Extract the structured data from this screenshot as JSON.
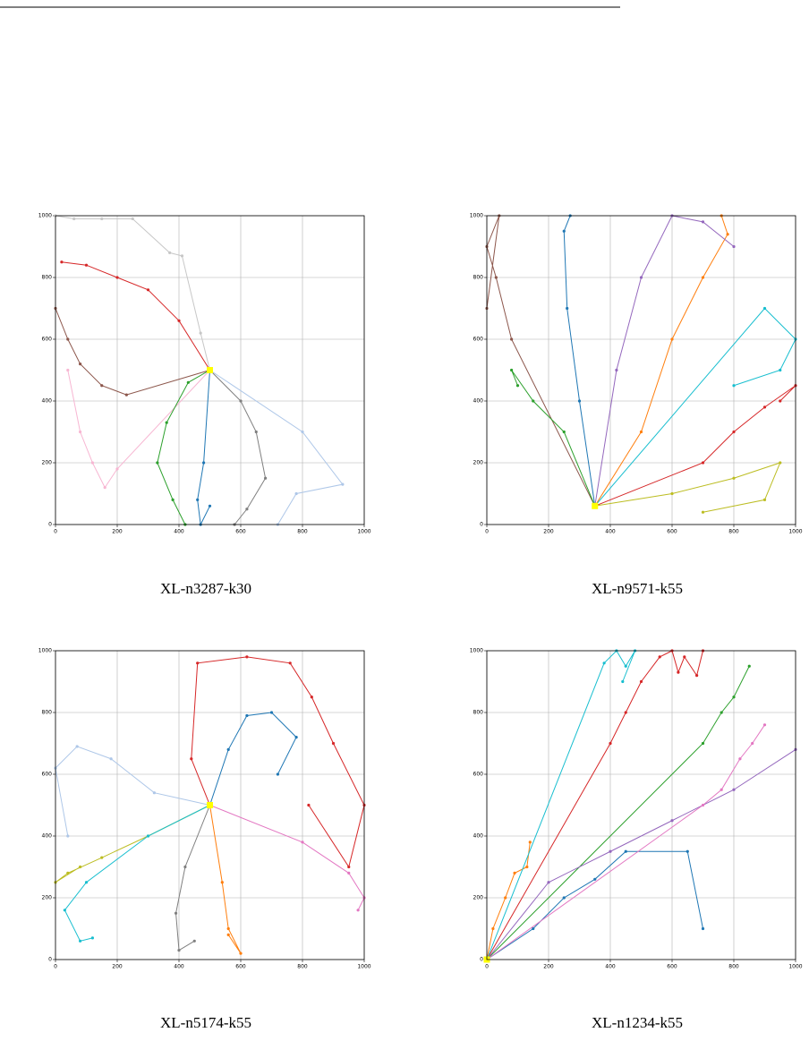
{
  "chart_data": [
    {
      "type": "line",
      "title": "XL-n3287-k30",
      "xlim": [
        0,
        1000
      ],
      "ylim": [
        0,
        1000
      ],
      "xticks": [
        0,
        200,
        400,
        600,
        800,
        1000
      ],
      "yticks": [
        0,
        200,
        400,
        600,
        800,
        1000
      ],
      "grid": true,
      "depot": {
        "x": 500,
        "y": 500,
        "color": "#ffff00"
      },
      "series": [
        {
          "color": "#c7c7c7",
          "x": [
            500,
            470,
            410,
            370,
            250,
            150,
            60,
            0
          ],
          "y": [
            500,
            620,
            870,
            880,
            990,
            990,
            990,
            1000
          ]
        },
        {
          "color": "#d62728",
          "x": [
            500,
            400,
            300,
            200,
            100,
            20
          ],
          "y": [
            500,
            660,
            760,
            800,
            840,
            850
          ]
        },
        {
          "color": "#f7b6d2",
          "x": [
            500,
            200,
            160,
            120,
            80,
            40
          ],
          "y": [
            500,
            180,
            120,
            200,
            300,
            500
          ]
        },
        {
          "color": "#1f77b4",
          "x": [
            500,
            480,
            460,
            470,
            500
          ],
          "y": [
            500,
            200,
            80,
            0,
            60
          ]
        },
        {
          "color": "#7f7f7f",
          "x": [
            500,
            600,
            650,
            680,
            620,
            580
          ],
          "y": [
            500,
            400,
            300,
            150,
            50,
            0
          ]
        },
        {
          "color": "#aec7e8",
          "x": [
            500,
            800,
            930,
            780,
            720
          ],
          "y": [
            500,
            300,
            130,
            100,
            0
          ]
        },
        {
          "color": "#2ca02c",
          "x": [
            500,
            430,
            360,
            330,
            380,
            420
          ],
          "y": [
            500,
            460,
            330,
            200,
            80,
            0
          ]
        },
        {
          "color": "#8c564b",
          "x": [
            500,
            230,
            150,
            80,
            40,
            0
          ],
          "y": [
            500,
            420,
            450,
            520,
            600,
            700
          ]
        }
      ]
    },
    {
      "type": "line",
      "title": "XL-n9571-k55",
      "xlim": [
        0,
        1000
      ],
      "ylim": [
        0,
        1000
      ],
      "xticks": [
        0,
        200,
        400,
        600,
        800,
        1000
      ],
      "yticks": [
        0,
        200,
        400,
        600,
        800,
        1000
      ],
      "grid": true,
      "depot": {
        "x": 350,
        "y": 60,
        "color": "#ffff00"
      },
      "series": [
        {
          "color": "#1f77b4",
          "x": [
            350,
            300,
            260,
            250,
            270
          ],
          "y": [
            60,
            400,
            700,
            950,
            1000
          ]
        },
        {
          "color": "#ff7f0e",
          "x": [
            350,
            500,
            600,
            700,
            780,
            760
          ],
          "y": [
            60,
            300,
            600,
            800,
            940,
            1000
          ]
        },
        {
          "color": "#d62728",
          "x": [
            350,
            700,
            800,
            900,
            1000,
            950
          ],
          "y": [
            60,
            200,
            300,
            380,
            450,
            400
          ]
        },
        {
          "color": "#bcbd22",
          "x": [
            350,
            600,
            800,
            950,
            900,
            700
          ],
          "y": [
            60,
            100,
            150,
            200,
            80,
            40
          ]
        },
        {
          "color": "#8c564b",
          "x": [
            350,
            80,
            30,
            0,
            40,
            0
          ],
          "y": [
            60,
            600,
            800,
            900,
            1000,
            700
          ]
        },
        {
          "color": "#9467bd",
          "x": [
            350,
            420,
            500,
            600,
            700,
            800
          ],
          "y": [
            60,
            500,
            800,
            1000,
            980,
            900
          ]
        },
        {
          "color": "#2ca02c",
          "x": [
            350,
            250,
            150,
            80,
            100
          ],
          "y": [
            60,
            300,
            400,
            500,
            450
          ]
        },
        {
          "color": "#17becf",
          "x": [
            350,
            900,
            1000,
            950,
            800
          ],
          "y": [
            60,
            700,
            600,
            500,
            450
          ]
        }
      ]
    },
    {
      "type": "line",
      "title": "XL-n5174-k55",
      "xlim": [
        0,
        1000
      ],
      "ylim": [
        0,
        1000
      ],
      "xticks": [
        0,
        200,
        400,
        600,
        800,
        1000
      ],
      "yticks": [
        0,
        200,
        400,
        600,
        800,
        1000
      ],
      "grid": true,
      "depot": {
        "x": 500,
        "y": 500,
        "color": "#ffff00"
      },
      "series": [
        {
          "color": "#d62728",
          "x": [
            500,
            440,
            460,
            620,
            760,
            830,
            900,
            1000,
            950,
            820
          ],
          "y": [
            500,
            650,
            960,
            980,
            960,
            850,
            700,
            500,
            300,
            500
          ]
        },
        {
          "color": "#aec7e8",
          "x": [
            500,
            320,
            180,
            70,
            0,
            40
          ],
          "y": [
            500,
            540,
            650,
            690,
            620,
            400
          ]
        },
        {
          "color": "#bcbd22",
          "x": [
            500,
            300,
            150,
            40,
            0,
            80
          ],
          "y": [
            500,
            400,
            330,
            280,
            250,
            300
          ]
        },
        {
          "color": "#1f77b4",
          "x": [
            500,
            560,
            620,
            700,
            780,
            720
          ],
          "y": [
            500,
            680,
            790,
            800,
            720,
            600
          ]
        },
        {
          "color": "#ff7f0e",
          "x": [
            500,
            540,
            560,
            600,
            560
          ],
          "y": [
            500,
            250,
            100,
            20,
            80
          ]
        },
        {
          "color": "#7f7f7f",
          "x": [
            500,
            420,
            390,
            400,
            450
          ],
          "y": [
            500,
            300,
            150,
            30,
            60
          ]
        },
        {
          "color": "#e377c2",
          "x": [
            500,
            800,
            950,
            1000,
            980
          ],
          "y": [
            500,
            380,
            280,
            200,
            160
          ]
        },
        {
          "color": "#17becf",
          "x": [
            500,
            300,
            100,
            30,
            80,
            120
          ],
          "y": [
            500,
            400,
            250,
            160,
            60,
            70
          ]
        }
      ]
    },
    {
      "type": "line",
      "title": "XL-n1234-k55",
      "xlim": [
        0,
        1000
      ],
      "ylim": [
        0,
        1000
      ],
      "xticks": [
        0,
        200,
        400,
        600,
        800,
        1000
      ],
      "yticks": [
        0,
        200,
        400,
        600,
        800,
        1000
      ],
      "grid": true,
      "depot": {
        "x": 0,
        "y": 0,
        "color": "#ffff00"
      },
      "series": [
        {
          "color": "#d62728",
          "x": [
            0,
            400,
            450,
            500,
            560,
            600,
            620,
            640,
            680,
            700
          ],
          "y": [
            0,
            700,
            800,
            900,
            980,
            1000,
            930,
            980,
            920,
            1000
          ]
        },
        {
          "color": "#2ca02c",
          "x": [
            0,
            700,
            760,
            800,
            850
          ],
          "y": [
            0,
            700,
            800,
            850,
            950
          ]
        },
        {
          "color": "#1f77b4",
          "x": [
            0,
            150,
            250,
            350,
            450,
            650,
            700
          ],
          "y": [
            0,
            100,
            200,
            260,
            350,
            350,
            100
          ]
        },
        {
          "color": "#ff7f0e",
          "x": [
            0,
            20,
            60,
            90,
            130,
            140
          ],
          "y": [
            0,
            100,
            200,
            280,
            300,
            380
          ]
        },
        {
          "color": "#17becf",
          "x": [
            0,
            380,
            420,
            450,
            480,
            440
          ],
          "y": [
            0,
            960,
            1000,
            950,
            1000,
            900
          ]
        },
        {
          "color": "#9467bd",
          "x": [
            0,
            200,
            400,
            600,
            800,
            1000
          ],
          "y": [
            0,
            250,
            350,
            450,
            550,
            680
          ]
        },
        {
          "color": "#e377c2",
          "x": [
            0,
            700,
            760,
            820,
            860,
            900
          ],
          "y": [
            0,
            500,
            550,
            650,
            700,
            760
          ]
        }
      ]
    }
  ]
}
